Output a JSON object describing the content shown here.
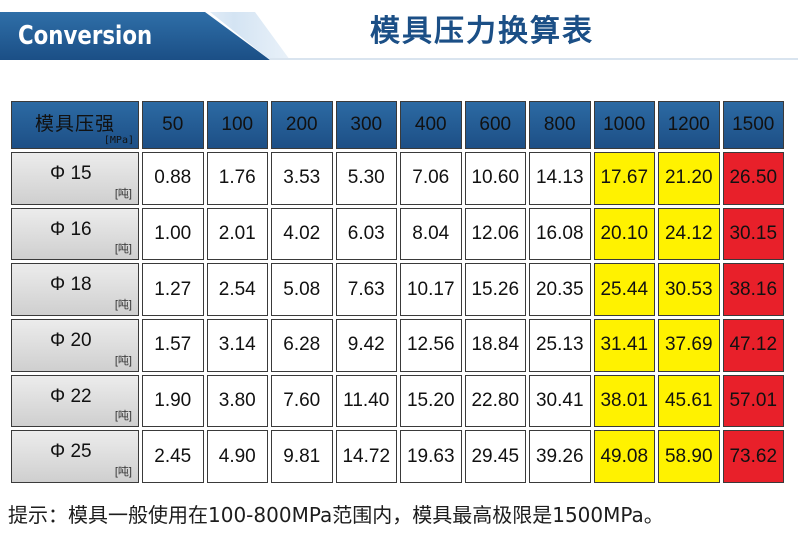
{
  "header": {
    "tab_label": "Conversion",
    "title": "模具压力换算表"
  },
  "table": {
    "corner_label": "模具压强",
    "corner_unit": "[MPa]",
    "columns": [
      "50",
      "100",
      "200",
      "300",
      "400",
      "600",
      "800",
      "1000",
      "1200",
      "1500"
    ],
    "row_unit": "[吨]",
    "rows": [
      {
        "label": "Φ 15",
        "values": [
          "0.88",
          "1.76",
          "3.53",
          "5.30",
          "7.06",
          "10.60",
          "14.13",
          "17.67",
          "21.20",
          "26.50"
        ]
      },
      {
        "label": "Φ 16",
        "values": [
          "1.00",
          "2.01",
          "4.02",
          "6.03",
          "8.04",
          "12.06",
          "16.08",
          "20.10",
          "24.12",
          "30.15"
        ]
      },
      {
        "label": "Φ 18",
        "values": [
          "1.27",
          "2.54",
          "5.08",
          "7.63",
          "10.17",
          "15.26",
          "20.35",
          "25.44",
          "30.53",
          "38.16"
        ]
      },
      {
        "label": "Φ 20",
        "values": [
          "1.57",
          "3.14",
          "6.28",
          "9.42",
          "12.56",
          "18.84",
          "25.13",
          "31.41",
          "37.69",
          "47.12"
        ]
      },
      {
        "label": "Φ 22",
        "values": [
          "1.90",
          "3.80",
          "7.60",
          "11.40",
          "15.20",
          "22.80",
          "30.41",
          "38.01",
          "45.61",
          "57.01"
        ]
      },
      {
        "label": "Φ 25",
        "values": [
          "2.45",
          "4.90",
          "9.81",
          "14.72",
          "19.63",
          "29.45",
          "39.26",
          "49.08",
          "58.90",
          "73.62"
        ]
      }
    ],
    "highlight_colors": {
      "yellow": "#fff200",
      "red": "#e8202a",
      "header_blue": "#1d4f86"
    }
  },
  "footer": {
    "note": "提示：模具一般使用在100-800MPa范围内，模具最高极限是1500MPa。"
  }
}
